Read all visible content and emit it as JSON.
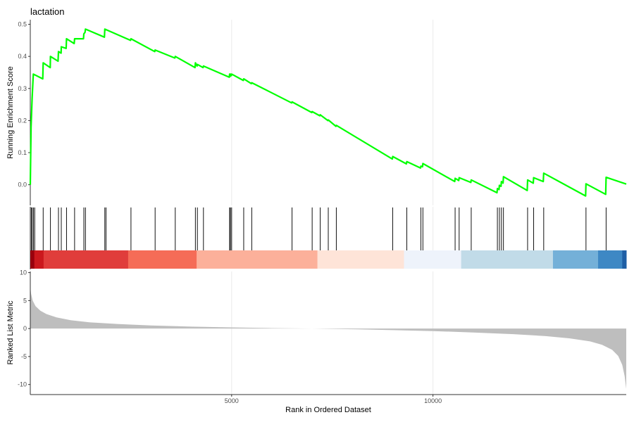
{
  "chart_data": {
    "type": "line",
    "title": "lactation",
    "total_genes": 14800,
    "xlabel": "Rank in Ordered Dataset",
    "x_ticks": [
      5000,
      10000
    ],
    "x_tick_labels": [
      "5000",
      "10000"
    ],
    "grid": "vertical major lines only",
    "enrichment_panel": {
      "ylabel": "Running Enrichment Score",
      "ylim": [
        -0.06,
        0.51
      ],
      "y_ticks": [
        0.0,
        0.1,
        0.2,
        0.3,
        0.4,
        0.5
      ],
      "y_tick_labels": [
        "0.0",
        "0.1",
        "0.2",
        "0.3",
        "0.4",
        "0.5"
      ],
      "line_color": "#00ff00",
      "hit_ranks": [
        25,
        50,
        80,
        110,
        320,
        500,
        700,
        770,
        900,
        1100,
        1330,
        1370,
        1850,
        1880,
        2500,
        3100,
        3600,
        4100,
        4150,
        4300,
        4950,
        4970,
        5000,
        5300,
        5500,
        6500,
        7000,
        7200,
        7400,
        7600,
        9000,
        9350,
        9700,
        9750,
        10550,
        10650,
        10950,
        11600,
        11650,
        11700,
        11750,
        12350,
        12500,
        12750,
        13800,
        14300
      ],
      "running_score": [
        [
          0,
          0.0
        ],
        [
          20,
          0.18
        ],
        [
          45,
          0.27
        ],
        [
          75,
          0.345
        ],
        [
          310,
          0.33
        ],
        [
          320,
          0.38
        ],
        [
          495,
          0.365
        ],
        [
          500,
          0.4
        ],
        [
          690,
          0.385
        ],
        [
          700,
          0.415
        ],
        [
          765,
          0.41
        ],
        [
          770,
          0.43
        ],
        [
          890,
          0.425
        ],
        [
          900,
          0.455
        ],
        [
          1090,
          0.44
        ],
        [
          1100,
          0.455
        ],
        [
          1320,
          0.455
        ],
        [
          1330,
          0.47
        ],
        [
          1360,
          0.475
        ],
        [
          1370,
          0.485
        ],
        [
          1840,
          0.46
        ],
        [
          1850,
          0.485
        ],
        [
          2490,
          0.45
        ],
        [
          2500,
          0.455
        ],
        [
          3090,
          0.415
        ],
        [
          3100,
          0.42
        ],
        [
          3590,
          0.395
        ],
        [
          3600,
          0.4
        ],
        [
          4090,
          0.365
        ],
        [
          4100,
          0.38
        ],
        [
          4140,
          0.37
        ],
        [
          4150,
          0.375
        ],
        [
          4290,
          0.365
        ],
        [
          4300,
          0.37
        ],
        [
          4940,
          0.335
        ],
        [
          4950,
          0.345
        ],
        [
          4965,
          0.338
        ],
        [
          4970,
          0.345
        ],
        [
          4995,
          0.34
        ],
        [
          5000,
          0.345
        ],
        [
          5290,
          0.325
        ],
        [
          5300,
          0.33
        ],
        [
          5490,
          0.315
        ],
        [
          5500,
          0.318
        ],
        [
          6490,
          0.255
        ],
        [
          6500,
          0.258
        ],
        [
          6990,
          0.225
        ],
        [
          7000,
          0.228
        ],
        [
          7190,
          0.215
        ],
        [
          7200,
          0.218
        ],
        [
          7390,
          0.2
        ],
        [
          7400,
          0.202
        ],
        [
          7590,
          0.182
        ],
        [
          7600,
          0.185
        ],
        [
          8990,
          0.08
        ],
        [
          9000,
          0.088
        ],
        [
          9340,
          0.065
        ],
        [
          9350,
          0.072
        ],
        [
          9690,
          0.052
        ],
        [
          9700,
          0.058
        ],
        [
          9740,
          0.056
        ],
        [
          9750,
          0.066
        ],
        [
          10540,
          0.01
        ],
        [
          10550,
          0.02
        ],
        [
          10640,
          0.013
        ],
        [
          10650,
          0.022
        ],
        [
          10940,
          0.007
        ],
        [
          10950,
          0.015
        ],
        [
          11590,
          -0.025
        ],
        [
          11600,
          -0.012
        ],
        [
          11640,
          -0.015
        ],
        [
          11650,
          -0.002
        ],
        [
          11690,
          -0.005
        ],
        [
          11700,
          0.01
        ],
        [
          11740,
          0.005
        ],
        [
          11750,
          0.025
        ],
        [
          12340,
          -0.018
        ],
        [
          12350,
          0.015
        ],
        [
          12490,
          0.005
        ],
        [
          12500,
          0.022
        ],
        [
          12740,
          0.01
        ],
        [
          12750,
          0.036
        ],
        [
          13790,
          -0.035
        ],
        [
          13800,
          0.003
        ],
        [
          14290,
          -0.03
        ],
        [
          14300,
          0.023
        ],
        [
          14800,
          0.002
        ]
      ]
    },
    "color_bar": {
      "segments": [
        {
          "start": 0,
          "end": 100,
          "color": "#99000d"
        },
        {
          "start": 100,
          "end": 330,
          "color": "#cb181d"
        },
        {
          "start": 330,
          "end": 2430,
          "color": "#e03d3b"
        },
        {
          "start": 2430,
          "end": 4130,
          "color": "#f56c57"
        },
        {
          "start": 4130,
          "end": 7130,
          "color": "#fcb09a"
        },
        {
          "start": 7130,
          "end": 9280,
          "color": "#fee4d8"
        },
        {
          "start": 9280,
          "end": 10700,
          "color": "#eef3fb"
        },
        {
          "start": 10700,
          "end": 12980,
          "color": "#c1dbe8"
        },
        {
          "start": 12980,
          "end": 14100,
          "color": "#74b0d8"
        },
        {
          "start": 14100,
          "end": 14700,
          "color": "#3e88c4"
        },
        {
          "start": 14700,
          "end": 14800,
          "color": "#1f5fa5"
        }
      ]
    },
    "ranked_panel": {
      "ylabel": "Ranked List Metric",
      "ylim": [
        -11.8,
        10.2
      ],
      "y_ticks": [
        10,
        5,
        0,
        -5,
        -10
      ],
      "y_tick_labels": [
        "10",
        "5",
        "0",
        "-5",
        "-10"
      ],
      "fill_color": "#bebebe",
      "metric_curve": [
        [
          0,
          7.5
        ],
        [
          20,
          6.2
        ],
        [
          60,
          5.0
        ],
        [
          130,
          4.0
        ],
        [
          250,
          3.2
        ],
        [
          400,
          2.6
        ],
        [
          650,
          2.0
        ],
        [
          1000,
          1.5
        ],
        [
          1500,
          1.1
        ],
        [
          2200,
          0.8
        ],
        [
          3000,
          0.55
        ],
        [
          4000,
          0.35
        ],
        [
          5000,
          0.2
        ],
        [
          6000,
          0.08
        ],
        [
          7000,
          0.0
        ],
        [
          8000,
          -0.12
        ],
        [
          9000,
          -0.28
        ],
        [
          10000,
          -0.45
        ],
        [
          11000,
          -0.7
        ],
        [
          12000,
          -1.0
        ],
        [
          12800,
          -1.35
        ],
        [
          13400,
          -1.75
        ],
        [
          13900,
          -2.3
        ],
        [
          14200,
          -2.9
        ],
        [
          14450,
          -3.8
        ],
        [
          14600,
          -4.9
        ],
        [
          14700,
          -6.5
        ],
        [
          14760,
          -8.5
        ],
        [
          14800,
          -10.8
        ]
      ]
    }
  }
}
